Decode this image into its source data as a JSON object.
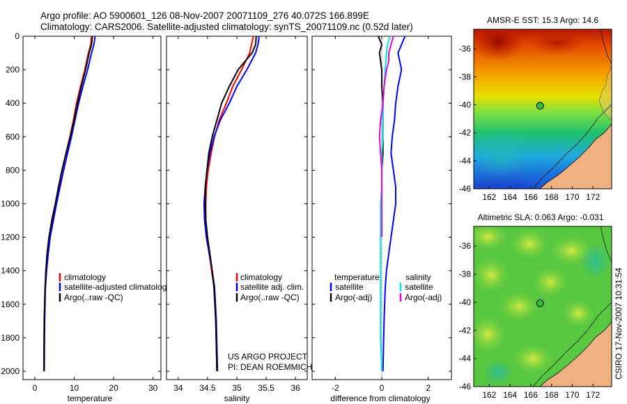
{
  "header": {
    "line1": "Argo profile: AO 5900601_126 08-Nov-2007 20071109_276 40.072S 166.899E",
    "line2": "Climatology: CARS2006. Satellite-adjusted climatology: synTS_20071109.nc (0.52d later)"
  },
  "side_stamp": "CSIRO 17-Nov-2007 10:31:54",
  "project_credit": {
    "line1": "US ARGO PROJECT",
    "line2": "PI: DEAN ROEMMICH"
  },
  "colors": {
    "red": "#ff0000",
    "blue": "#0000ff",
    "black": "#000000",
    "cyan": "#00e5e5",
    "magenta": "#e600e6",
    "coast": "#000000",
    "land": "#f0b080"
  },
  "chart_data": [
    {
      "type": "line",
      "xlabel": "temperature",
      "ylabel": "",
      "xlim": [
        -3,
        32
      ],
      "ylim": [
        2050,
        0
      ],
      "xticks": [
        0,
        10,
        20,
        30
      ],
      "yticks": [
        0,
        200,
        400,
        600,
        800,
        1000,
        1200,
        1400,
        1600,
        1800,
        2000
      ],
      "legend": {
        "position": "lower-right",
        "entries": [
          "climatology",
          "satellite-adjusted climatology",
          "Argo(..raw -QC)"
        ]
      },
      "series": [
        {
          "name": "climatology",
          "color": "red",
          "x": [
            14.4,
            14.2,
            13.6,
            12.7,
            11.6,
            10.6,
            9.8,
            8.9,
            7.9,
            6.9,
            6.1,
            5.3,
            4.5,
            3.7,
            3.2,
            2.9,
            2.6,
            2.4,
            2.3
          ],
          "y": [
            0,
            50,
            100,
            200,
            300,
            400,
            500,
            600,
            700,
            800,
            900,
            1000,
            1100,
            1200,
            1300,
            1400,
            1500,
            1700,
            2000
          ]
        },
        {
          "name": "satellite-adjusted climatology",
          "color": "blue",
          "x": [
            15.3,
            15.0,
            14.4,
            13.4,
            12.2,
            11.1,
            10.2,
            9.3,
            8.3,
            7.3,
            6.4,
            5.5,
            4.7,
            3.9,
            3.4,
            3.0,
            2.7,
            2.5,
            2.4
          ],
          "y": [
            0,
            50,
            100,
            200,
            300,
            400,
            500,
            600,
            700,
            800,
            900,
            1000,
            1100,
            1200,
            1300,
            1400,
            1500,
            1700,
            2000
          ]
        },
        {
          "name": "Argo(..raw -QC)",
          "color": "black",
          "x": [
            14.6,
            14.4,
            13.8,
            12.9,
            11.8,
            10.8,
            10.0,
            9.0,
            7.9,
            6.9,
            6.0,
            5.2,
            4.3,
            3.6,
            3.1,
            2.8,
            2.6,
            2.4,
            2.3
          ],
          "y": [
            0,
            50,
            100,
            200,
            300,
            400,
            500,
            600,
            700,
            800,
            900,
            1000,
            1100,
            1200,
            1300,
            1400,
            1500,
            1700,
            2000
          ]
        }
      ]
    },
    {
      "type": "line",
      "xlabel": "salinity",
      "xlim": [
        33.8,
        36.2
      ],
      "ylim": [
        2050,
        0
      ],
      "xticks": [
        34,
        34.5,
        35,
        35.5,
        36
      ],
      "legend": {
        "position": "lower-right",
        "entries": [
          "climatology",
          "satellite adj. clim.",
          "Argo(..raw -QC)"
        ]
      },
      "series": [
        {
          "name": "climatology",
          "color": "red",
          "x": [
            35.28,
            35.25,
            35.22,
            35.08,
            34.93,
            34.82,
            34.7,
            34.62,
            34.56,
            34.51,
            34.48,
            34.47,
            34.47,
            34.5,
            34.53,
            34.57,
            34.61,
            34.64,
            34.66
          ],
          "y": [
            0,
            50,
            100,
            200,
            300,
            400,
            500,
            600,
            700,
            800,
            900,
            1000,
            1100,
            1200,
            1300,
            1400,
            1500,
            1700,
            2000
          ]
        },
        {
          "name": "satellite adj. clim.",
          "color": "blue",
          "x": [
            35.38,
            35.36,
            35.32,
            35.17,
            35.0,
            34.87,
            34.72,
            34.61,
            34.54,
            34.49,
            34.46,
            34.44,
            34.45,
            34.48,
            34.53,
            34.58,
            34.62,
            34.65,
            34.67
          ],
          "y": [
            0,
            50,
            100,
            200,
            300,
            400,
            500,
            600,
            700,
            800,
            900,
            1000,
            1100,
            1200,
            1300,
            1400,
            1500,
            1700,
            2000
          ]
        },
        {
          "name": "Argo(..raw -QC)",
          "color": "black",
          "x": [
            35.33,
            35.32,
            35.26,
            35.02,
            34.87,
            34.74,
            34.66,
            34.58,
            34.52,
            34.49,
            34.46,
            34.46,
            34.47,
            34.5,
            34.54,
            34.58,
            34.61,
            34.64,
            34.66
          ],
          "y": [
            0,
            50,
            100,
            200,
            300,
            400,
            500,
            600,
            700,
            800,
            900,
            1000,
            1100,
            1200,
            1300,
            1400,
            1500,
            1700,
            2000
          ]
        }
      ]
    },
    {
      "type": "line",
      "xlabel": "difference from climatology",
      "xlim": [
        -3,
        3
      ],
      "ylim": [
        2050,
        0
      ],
      "xticks": [
        -2,
        0,
        2
      ],
      "legend": {
        "position": "lower-right",
        "temperature_heading": "temperature",
        "salinity_heading": "salinity",
        "entries": [
          "satellite",
          "Argo(-adj)",
          "satellite",
          "Argo(-adj)"
        ]
      },
      "series": [
        {
          "name": "satellite",
          "color": "blue",
          "x": [
            1.0,
            0.85,
            0.7,
            0.85,
            0.7,
            0.6,
            0.55,
            0.45,
            0.4,
            0.5,
            0.6,
            0.6,
            0.5,
            0.4,
            0.3,
            0.2,
            0.15,
            0.1,
            0.05
          ],
          "y": [
            0,
            50,
            100,
            200,
            300,
            400,
            500,
            600,
            700,
            800,
            900,
            1000,
            1100,
            1200,
            1300,
            1400,
            1500,
            1700,
            2000
          ]
        },
        {
          "name": "Argo(-adj)",
          "color": "black",
          "x": [
            -0.15,
            0.0,
            -0.1,
            -0.05,
            0.0,
            0.0,
            0.05,
            0.05,
            0.05,
            0.05,
            0.0,
            0.0,
            0.0,
            -0.05
          ],
          "y": [
            0,
            50,
            100,
            150,
            200,
            300,
            400,
            500,
            600,
            700,
            800,
            900,
            1000,
            1200
          ]
        },
        {
          "name": "satellite",
          "color": "cyan",
          "x": [
            0.35,
            0.25,
            0.2,
            0.15,
            0.1,
            0.05,
            0.05,
            0.05,
            0.0,
            0.0,
            0.0,
            -0.05,
            -0.05,
            -0.05,
            -0.05,
            -0.05,
            -0.05,
            0.0
          ],
          "y": [
            0,
            50,
            100,
            200,
            300,
            400,
            500,
            600,
            700,
            800,
            900,
            1000,
            1100,
            1200,
            1400,
            1600,
            1800,
            2000
          ]
        },
        {
          "name": "Argo(-adj)",
          "color": "magenta",
          "x": [
            0.5,
            0.4,
            0.3,
            0.3,
            0.2,
            0.1,
            0.05,
            -0.05,
            -0.1,
            -0.05,
            0.0,
            0.0,
            0.0,
            0.0
          ],
          "y": [
            0,
            50,
            100,
            150,
            200,
            300,
            400,
            500,
            600,
            700,
            800,
            900,
            1000,
            1200
          ]
        }
      ]
    },
    {
      "type": "heatmap",
      "title": "AMSR-E SST: 15.3 Argo: 14.6",
      "xlim": [
        160.5,
        173.8
      ],
      "ylim": [
        -46,
        -34.6
      ],
      "xticks": [
        162,
        164,
        166,
        168,
        170,
        172
      ],
      "yticks": [
        -36,
        -38,
        -40,
        -42,
        -44,
        -46
      ],
      "marker": {
        "lon": 166.899,
        "lat": -40.072
      },
      "colormap": "jet"
    },
    {
      "type": "heatmap",
      "title": "Altimetric SLA: 0.063 Argo: -0.031",
      "xlim": [
        160.5,
        173.8
      ],
      "ylim": [
        -46,
        -34.6
      ],
      "xticks": [
        162,
        164,
        166,
        168,
        170,
        172
      ],
      "yticks": [
        -36,
        -38,
        -40,
        -42,
        -44,
        -46
      ],
      "marker": {
        "lon": 166.899,
        "lat": -40.072
      },
      "colormap": "jet"
    }
  ]
}
